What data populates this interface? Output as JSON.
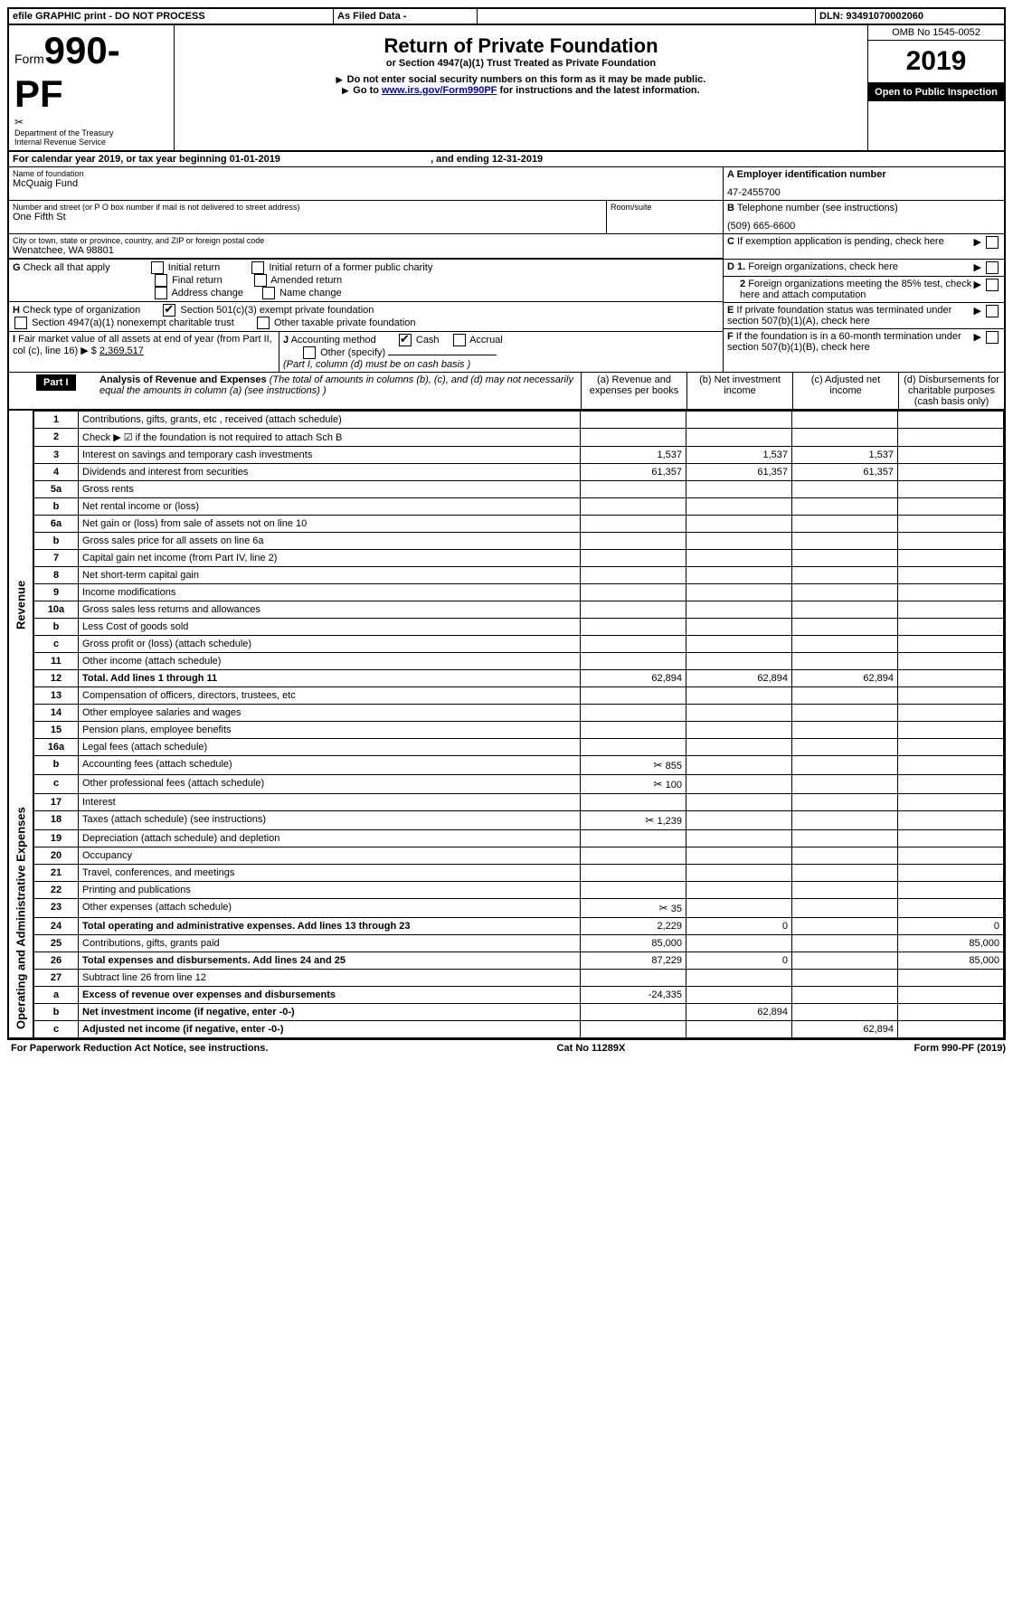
{
  "topbar": {
    "efile": "efile GRAPHIC print - DO NOT PROCESS",
    "asfiled": "As Filed Data - ",
    "dln_label": "DLN:",
    "dln": "93491070002060"
  },
  "header": {
    "form_prefix": "Form",
    "form_number": "990-PF",
    "dept": "Department of the Treasury",
    "irs": "Internal Revenue Service",
    "title": "Return of Private Foundation",
    "subtitle": "or Section 4947(a)(1) Trust Treated as Private Foundation",
    "note1": "Do not enter social security numbers on this form as it may be made public.",
    "note2_prefix": "Go to ",
    "note2_link": "www.irs.gov/Form990PF",
    "note2_suffix": " for instructions and the latest information.",
    "omb": "OMB No 1545-0052",
    "year": "2019",
    "open": "Open to Public Inspection"
  },
  "calendar": {
    "text1": "For calendar year 2019, or tax year beginning ",
    "begin": "01-01-2019",
    "text2": ", and ending ",
    "end": "12-31-2019"
  },
  "id_block": {
    "name_label": "Name of foundation",
    "name": "McQuaig Fund",
    "addr_label": "Number and street (or P O  box number if mail is not delivered to street address)",
    "addr": "One Fifth St",
    "room_label": "Room/suite",
    "city_label": "City or town, state or province, country, and ZIP or foreign postal code",
    "city": "Wenatchee, WA  98801",
    "a_label": "A Employer identification number",
    "a_val": "47-2455700",
    "b_label": "B",
    "b_text": "Telephone number (see instructions)",
    "b_val": "(509) 665-6600",
    "c_label": "C",
    "c_text": "If exemption application is pending, check here"
  },
  "g": {
    "label": "G",
    "text": "Check all that apply",
    "opts": [
      "Initial return",
      "Initial return of a former public charity",
      "Final return",
      "Amended return",
      "Address change",
      "Name change"
    ]
  },
  "h": {
    "label": "H",
    "text": "Check type of organization",
    "opt1": "Section 501(c)(3) exempt private foundation",
    "opt2": "Section 4947(a)(1) nonexempt charitable trust",
    "opt3": "Other taxable private foundation"
  },
  "i": {
    "label": "I",
    "text1": "Fair market value of all assets at end of year ",
    "text2": "(from Part II, col  (c), line 16)",
    "arrow": "▶",
    "dollar": "$",
    "val": "2,369,517"
  },
  "j": {
    "label": "J",
    "text": "Accounting method",
    "cash": "Cash",
    "accrual": "Accrual",
    "other": "Other (specify)",
    "note": "(Part I, column (d) must be on cash basis )"
  },
  "d": {
    "d1": "Foreign organizations, check here",
    "d2": "Foreign organizations meeting the 85% test, check here and attach computation"
  },
  "e": {
    "text": "If private foundation status was terminated under section 507(b)(1)(A), check here"
  },
  "f": {
    "text": "If the foundation is in a 60-month termination under section 507(b)(1)(B), check here"
  },
  "part1": {
    "label": "Part I",
    "title": "Analysis of Revenue and Expenses",
    "note": "(The total of amounts in columns (b), (c), and (d) may not necessarily equal the amounts in column (a) (see instructions) )",
    "col_a": "(a) Revenue and expenses per books",
    "col_b": "(b) Net investment income",
    "col_c": "(c) Adjusted net income",
    "col_d": "(d) Disbursements for charitable purposes (cash basis only)",
    "side_revenue": "Revenue",
    "side_expenses": "Operating and Administrative Expenses"
  },
  "rows": [
    {
      "n": "1",
      "d": "Contributions, gifts, grants, etc , received (attach schedule)",
      "a": "",
      "b": "",
      "c": "",
      "dd": ""
    },
    {
      "n": "2",
      "d": "Check ▶ ☑ if the foundation is not required to attach Sch  B",
      "a": "",
      "b": "",
      "c": "",
      "dd": ""
    },
    {
      "n": "3",
      "d": "Interest on savings and temporary cash investments",
      "a": "1,537",
      "b": "1,537",
      "c": "1,537",
      "dd": ""
    },
    {
      "n": "4",
      "d": "Dividends and interest from securities",
      "a": "61,357",
      "b": "61,357",
      "c": "61,357",
      "dd": ""
    },
    {
      "n": "5a",
      "d": "Gross rents",
      "a": "",
      "b": "",
      "c": "",
      "dd": ""
    },
    {
      "n": "b",
      "d": "Net rental income or (loss)",
      "a": "",
      "b": "",
      "c": "",
      "dd": ""
    },
    {
      "n": "6a",
      "d": "Net gain or (loss) from sale of assets not on line 10",
      "a": "",
      "b": "",
      "c": "",
      "dd": ""
    },
    {
      "n": "b",
      "d": "Gross sales price for all assets on line 6a",
      "a": "",
      "b": "",
      "c": "",
      "dd": ""
    },
    {
      "n": "7",
      "d": "Capital gain net income (from Part IV, line 2)",
      "a": "",
      "b": "",
      "c": "",
      "dd": ""
    },
    {
      "n": "8",
      "d": "Net short-term capital gain",
      "a": "",
      "b": "",
      "c": "",
      "dd": ""
    },
    {
      "n": "9",
      "d": "Income modifications",
      "a": "",
      "b": "",
      "c": "",
      "dd": ""
    },
    {
      "n": "10a",
      "d": "Gross sales less returns and allowances",
      "a": "",
      "b": "",
      "c": "",
      "dd": ""
    },
    {
      "n": "b",
      "d": "Less  Cost of goods sold",
      "a": "",
      "b": "",
      "c": "",
      "dd": ""
    },
    {
      "n": "c",
      "d": "Gross profit or (loss) (attach schedule)",
      "a": "",
      "b": "",
      "c": "",
      "dd": ""
    },
    {
      "n": "11",
      "d": "Other income (attach schedule)",
      "a": "",
      "b": "",
      "c": "",
      "dd": ""
    },
    {
      "n": "12",
      "d": "Total. Add lines 1 through 11",
      "a": "62,894",
      "b": "62,894",
      "c": "62,894",
      "dd": "",
      "bold": true
    },
    {
      "n": "13",
      "d": "Compensation of officers, directors, trustees, etc",
      "a": "",
      "b": "",
      "c": "",
      "dd": ""
    },
    {
      "n": "14",
      "d": "Other employee salaries and wages",
      "a": "",
      "b": "",
      "c": "",
      "dd": ""
    },
    {
      "n": "15",
      "d": "Pension plans, employee benefits",
      "a": "",
      "b": "",
      "c": "",
      "dd": ""
    },
    {
      "n": "16a",
      "d": "Legal fees (attach schedule)",
      "a": "",
      "b": "",
      "c": "",
      "dd": ""
    },
    {
      "n": "b",
      "d": "Accounting fees (attach schedule)",
      "a": "855",
      "b": "",
      "c": "",
      "dd": "",
      "icon": true
    },
    {
      "n": "c",
      "d": "Other professional fees (attach schedule)",
      "a": "100",
      "b": "",
      "c": "",
      "dd": "",
      "icon": true
    },
    {
      "n": "17",
      "d": "Interest",
      "a": "",
      "b": "",
      "c": "",
      "dd": ""
    },
    {
      "n": "18",
      "d": "Taxes (attach schedule) (see instructions)",
      "a": "1,239",
      "b": "",
      "c": "",
      "dd": "",
      "icon": true
    },
    {
      "n": "19",
      "d": "Depreciation (attach schedule) and depletion",
      "a": "",
      "b": "",
      "c": "",
      "dd": ""
    },
    {
      "n": "20",
      "d": "Occupancy",
      "a": "",
      "b": "",
      "c": "",
      "dd": ""
    },
    {
      "n": "21",
      "d": "Travel, conferences, and meetings",
      "a": "",
      "b": "",
      "c": "",
      "dd": ""
    },
    {
      "n": "22",
      "d": "Printing and publications",
      "a": "",
      "b": "",
      "c": "",
      "dd": ""
    },
    {
      "n": "23",
      "d": "Other expenses (attach schedule)",
      "a": "35",
      "b": "",
      "c": "",
      "dd": "",
      "icon": true
    },
    {
      "n": "24",
      "d": "Total operating and administrative expenses. Add lines 13 through 23",
      "a": "2,229",
      "b": "0",
      "c": "",
      "dd": "0",
      "bold": true
    },
    {
      "n": "25",
      "d": "Contributions, gifts, grants paid",
      "a": "85,000",
      "b": "",
      "c": "",
      "dd": "85,000"
    },
    {
      "n": "26",
      "d": "Total expenses and disbursements. Add lines 24 and 25",
      "a": "87,229",
      "b": "0",
      "c": "",
      "dd": "85,000",
      "bold": true
    },
    {
      "n": "27",
      "d": "Subtract line 26 from line 12",
      "a": "",
      "b": "",
      "c": "",
      "dd": ""
    },
    {
      "n": "a",
      "d": "Excess of revenue over expenses and disbursements",
      "a": "-24,335",
      "b": "",
      "c": "",
      "dd": "",
      "bold": true
    },
    {
      "n": "b",
      "d": "Net investment income (if negative, enter -0-)",
      "a": "",
      "b": "62,894",
      "c": "",
      "dd": "",
      "bold": true
    },
    {
      "n": "c",
      "d": "Adjusted net income (if negative, enter -0-)",
      "a": "",
      "b": "",
      "c": "62,894",
      "dd": "",
      "bold": true
    }
  ],
  "footer": {
    "left": "For Paperwork Reduction Act Notice, see instructions.",
    "mid": "Cat  No  11289X",
    "right": "Form 990-PF (2019)"
  }
}
